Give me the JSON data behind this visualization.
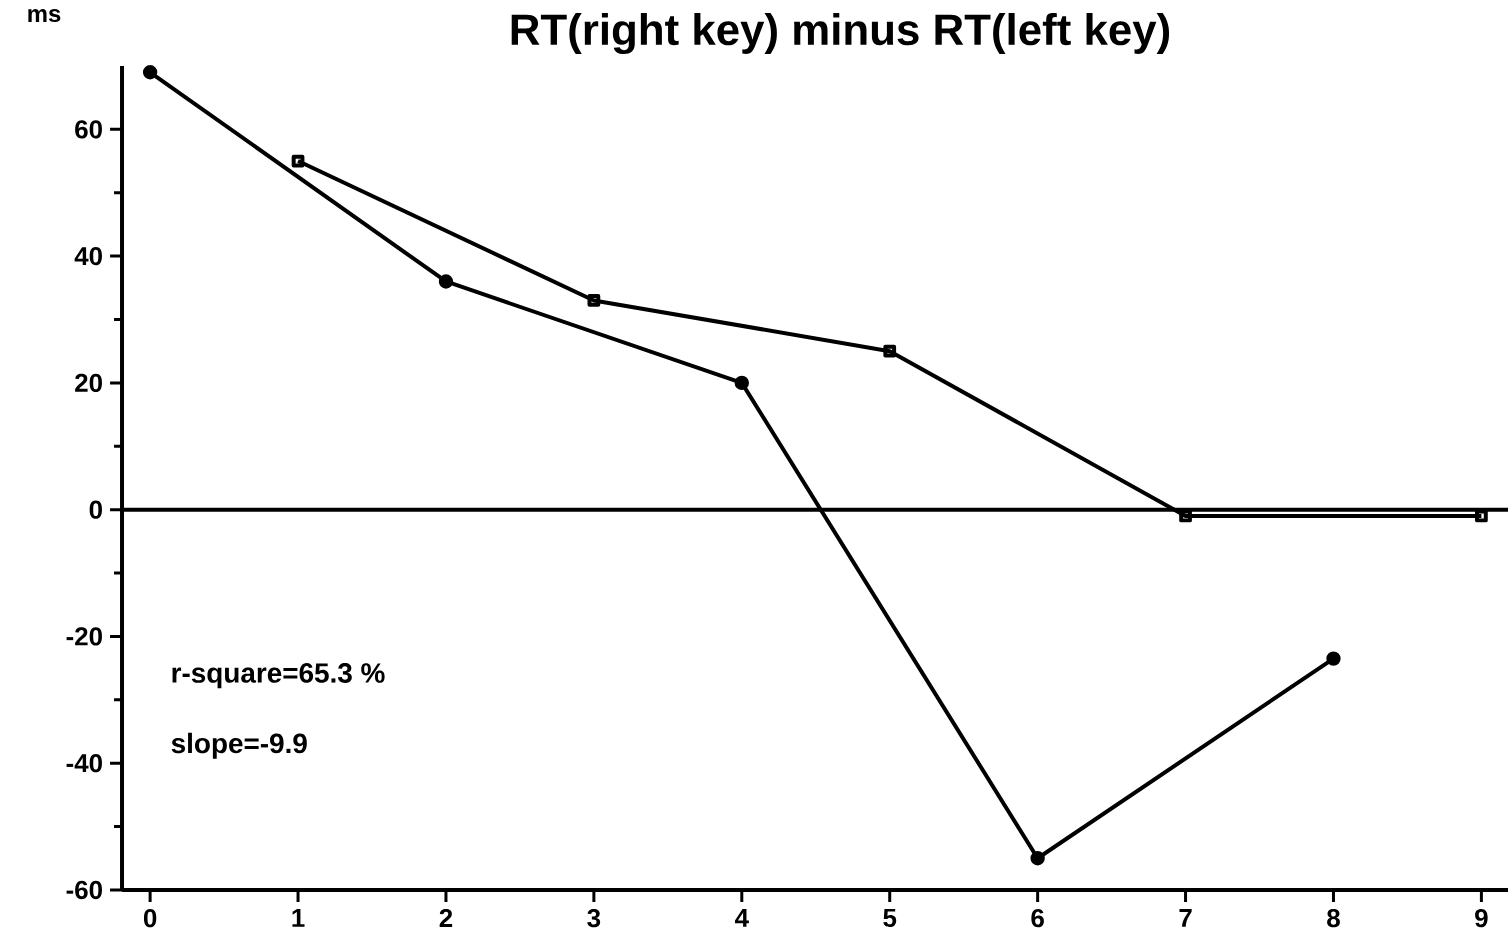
{
  "chart_data": {
    "type": "line",
    "title": "RT(right key) minus RT(left key)",
    "ylabel": "ms",
    "series": [
      {
        "color": "#000000",
        "marker": "circle",
        "x": [
          0,
          2,
          4,
          6,
          8
        ],
        "values": [
          69,
          36,
          20,
          -55,
          -23.5
        ]
      },
      {
        "color": "#000000",
        "marker": "square",
        "x": [
          1,
          3,
          5,
          7,
          9
        ],
        "values": [
          55,
          33,
          25,
          -1,
          -1
        ]
      }
    ],
    "xlim": [
      -0.19,
      9.18
    ],
    "ylim": [
      -60,
      70
    ],
    "xticks": [
      0,
      1,
      2,
      3,
      4,
      5,
      6,
      7,
      8,
      9
    ],
    "yticks": [
      -60,
      -40,
      -20,
      0,
      20,
      40,
      60
    ],
    "ref_lines": [
      {
        "axis": "y",
        "value": 0
      }
    ],
    "annotations": [
      "r-square=65.3 %",
      "slope=-9.9"
    ],
    "grid": false
  }
}
